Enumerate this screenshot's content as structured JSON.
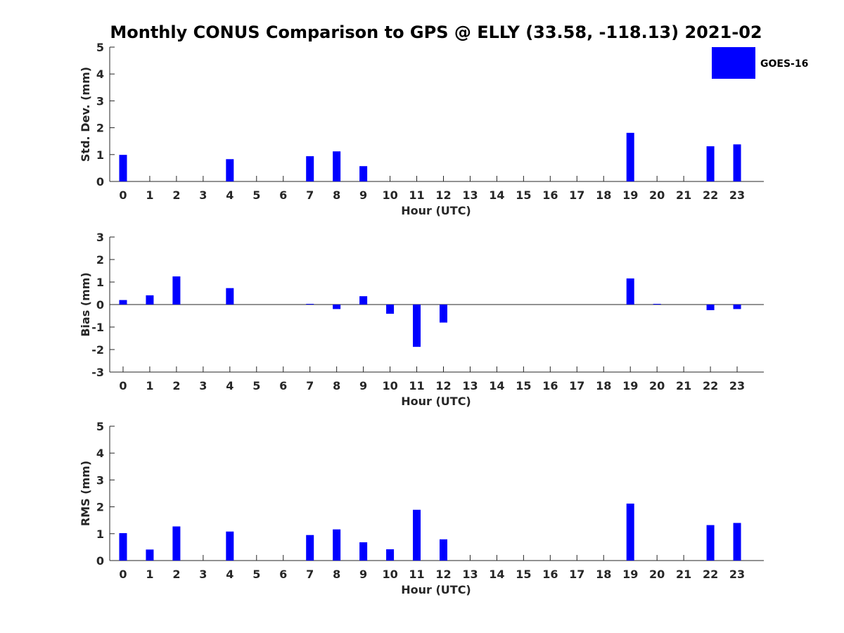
{
  "title": "Monthly CONUS Comparison to GPS @ ELLY (33.58, -118.13) 2021-02",
  "legend": {
    "label": "GOES-16",
    "color": "#0000ff",
    "placement": "top-right"
  },
  "chart_data": [
    {
      "type": "bar",
      "xlabel": "Hour (UTC)",
      "ylabel": "Std. Dev. (mm)",
      "ylim": [
        0,
        5
      ],
      "yticks": [
        0,
        1,
        2,
        3,
        4,
        5
      ],
      "categories": [
        0,
        1,
        2,
        3,
        4,
        5,
        6,
        7,
        8,
        9,
        10,
        11,
        12,
        13,
        14,
        15,
        16,
        17,
        18,
        19,
        20,
        21,
        22,
        23
      ],
      "series": [
        {
          "name": "GOES-16",
          "values": [
            0.99,
            null,
            null,
            null,
            0.83,
            null,
            null,
            0.94,
            1.12,
            0.57,
            null,
            null,
            null,
            null,
            null,
            null,
            null,
            null,
            null,
            1.81,
            null,
            null,
            1.31,
            1.38
          ]
        }
      ]
    },
    {
      "type": "bar",
      "xlabel": "Hour (UTC)",
      "ylabel": "Bias (mm)",
      "ylim": [
        -3,
        3
      ],
      "yticks": [
        -3,
        -2,
        -1,
        0,
        1,
        2,
        3
      ],
      "zero_line": true,
      "categories": [
        0,
        1,
        2,
        3,
        4,
        5,
        6,
        7,
        8,
        9,
        10,
        11,
        12,
        13,
        14,
        15,
        16,
        17,
        18,
        19,
        20,
        21,
        22,
        23
      ],
      "series": [
        {
          "name": "GOES-16",
          "values": [
            0.2,
            0.41,
            1.25,
            null,
            0.73,
            null,
            null,
            0.03,
            -0.2,
            0.37,
            -0.41,
            -1.88,
            -0.8,
            null,
            null,
            null,
            null,
            null,
            null,
            1.16,
            0.03,
            null,
            -0.25,
            -0.2
          ]
        }
      ]
    },
    {
      "type": "bar",
      "xlabel": "Hour (UTC)",
      "ylabel": "RMS (mm)",
      "ylim": [
        0,
        5
      ],
      "yticks": [
        0,
        1,
        2,
        3,
        4,
        5
      ],
      "categories": [
        0,
        1,
        2,
        3,
        4,
        5,
        6,
        7,
        8,
        9,
        10,
        11,
        12,
        13,
        14,
        15,
        16,
        17,
        18,
        19,
        20,
        21,
        22,
        23
      ],
      "series": [
        {
          "name": "GOES-16",
          "values": [
            1.02,
            0.41,
            1.27,
            null,
            1.08,
            null,
            null,
            0.95,
            1.16,
            0.68,
            0.42,
            1.89,
            0.79,
            null,
            null,
            null,
            null,
            null,
            null,
            2.12,
            null,
            null,
            1.32,
            1.4
          ]
        }
      ]
    }
  ]
}
